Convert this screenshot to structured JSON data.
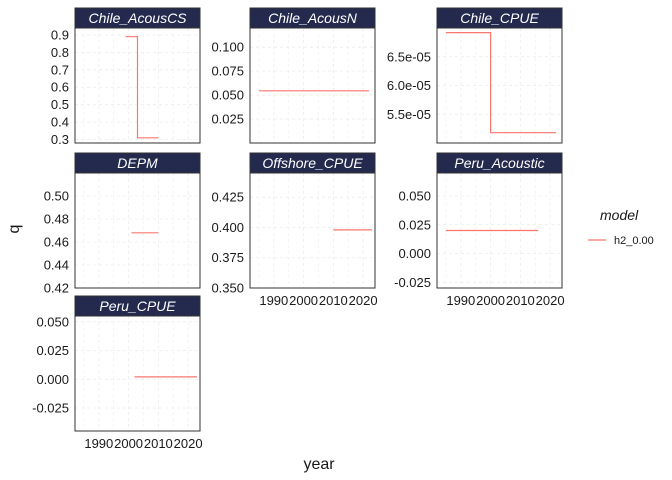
{
  "chart_data": {
    "type": "line",
    "layout": "facet_wrap",
    "xlabel": "year",
    "ylabel": "q",
    "x_ticks": [
      "1990",
      "2000",
      "2010",
      "2020"
    ],
    "xlim": [
      1982,
      2024
    ],
    "legend": {
      "title": "model",
      "placement": "right",
      "entries": [
        {
          "name": "h2_0.00",
          "color": "#F8766D"
        }
      ]
    },
    "colors": {
      "strip_fill": "#232A4E",
      "series": "#F8766D",
      "grid": "#EBEBEB",
      "frame": "#333333"
    },
    "panels": [
      {
        "name": "Chile_AcousCS",
        "ylim": [
          0.28,
          0.94
        ],
        "y_ticks": [
          {
            "value": 0.3,
            "label": "0.3"
          },
          {
            "value": 0.4,
            "label": "0.4"
          },
          {
            "value": 0.5,
            "label": "0.5"
          },
          {
            "value": 0.6,
            "label": "0.6"
          },
          {
            "value": 0.7,
            "label": "0.7"
          },
          {
            "value": 0.8,
            "label": "0.8"
          },
          {
            "value": 0.9,
            "label": "0.9"
          }
        ],
        "show_x_ticks": false,
        "series": [
          {
            "name": "h2_0.00",
            "x": [
              1999,
              2003,
              2003,
              2010
            ],
            "y": [
              0.89,
              0.89,
              0.31,
              0.31
            ]
          }
        ]
      },
      {
        "name": "Chile_AcousN",
        "ylim": [
          0.0,
          0.12
        ],
        "y_ticks": [
          {
            "value": 0.025,
            "label": "0.025"
          },
          {
            "value": 0.05,
            "label": "0.050"
          },
          {
            "value": 0.075,
            "label": "0.075"
          },
          {
            "value": 0.1,
            "label": "0.100"
          }
        ],
        "show_x_ticks": false,
        "series": [
          {
            "name": "h2_0.00",
            "x": [
              1985,
              2022
            ],
            "y": [
              0.0545,
              0.0545
            ]
          }
        ]
      },
      {
        "name": "Chile_CPUE",
        "ylim": [
          5e-05,
          7e-05
        ],
        "y_ticks": [
          {
            "value": 5.5e-05,
            "label": "5.5e-05"
          },
          {
            "value": 6e-05,
            "label": "6.0e-05"
          },
          {
            "value": 6.5e-05,
            "label": "6.5e-05"
          }
        ],
        "show_x_ticks": false,
        "series": [
          {
            "name": "h2_0.00",
            "x": [
              1985,
              2000,
              2000,
              2022
            ],
            "y": [
              6.92e-05,
              6.92e-05,
              5.18e-05,
              5.18e-05
            ]
          }
        ]
      },
      {
        "name": "DEPM",
        "ylim": [
          0.42,
          0.52
        ],
        "y_ticks": [
          {
            "value": 0.42,
            "label": "0.42"
          },
          {
            "value": 0.44,
            "label": "0.44"
          },
          {
            "value": 0.46,
            "label": "0.46"
          },
          {
            "value": 0.48,
            "label": "0.48"
          },
          {
            "value": 0.5,
            "label": "0.50"
          }
        ],
        "show_x_ticks": false,
        "series": [
          {
            "name": "h2_0.00",
            "x": [
              2001,
              2010
            ],
            "y": [
              0.468,
              0.468
            ]
          }
        ]
      },
      {
        "name": "Offshore_CPUE",
        "ylim": [
          0.35,
          0.445
        ],
        "y_ticks": [
          {
            "value": 0.35,
            "label": "0.350"
          },
          {
            "value": 0.375,
            "label": "0.375"
          },
          {
            "value": 0.4,
            "label": "0.400"
          },
          {
            "value": 0.425,
            "label": "0.425"
          }
        ],
        "show_x_ticks": true,
        "series": [
          {
            "name": "h2_0.00",
            "x": [
              2010,
              2023
            ],
            "y": [
              0.398,
              0.398
            ]
          }
        ]
      },
      {
        "name": "Peru_Acoustic",
        "ylim": [
          -0.03,
          0.07
        ],
        "y_ticks": [
          {
            "value": -0.025,
            "label": "-0.025"
          },
          {
            "value": 0.0,
            "label": "0.000"
          },
          {
            "value": 0.025,
            "label": "0.025"
          },
          {
            "value": 0.05,
            "label": "0.050"
          }
        ],
        "show_x_ticks": true,
        "series": [
          {
            "name": "h2_0.00",
            "x": [
              1985,
              2016
            ],
            "y": [
              0.02,
              0.02
            ]
          }
        ]
      },
      {
        "name": "Peru_CPUE",
        "ylim": [
          -0.045,
          0.055
        ],
        "y_ticks": [
          {
            "value": -0.025,
            "label": "-0.025"
          },
          {
            "value": 0.0,
            "label": "0.000"
          },
          {
            "value": 0.025,
            "label": "0.025"
          },
          {
            "value": 0.05,
            "label": "0.050"
          }
        ],
        "show_x_ticks": true,
        "series": [
          {
            "name": "h2_0.00",
            "x": [
              2002,
              2023
            ],
            "y": [
              0.002,
              0.002
            ]
          }
        ]
      }
    ]
  }
}
